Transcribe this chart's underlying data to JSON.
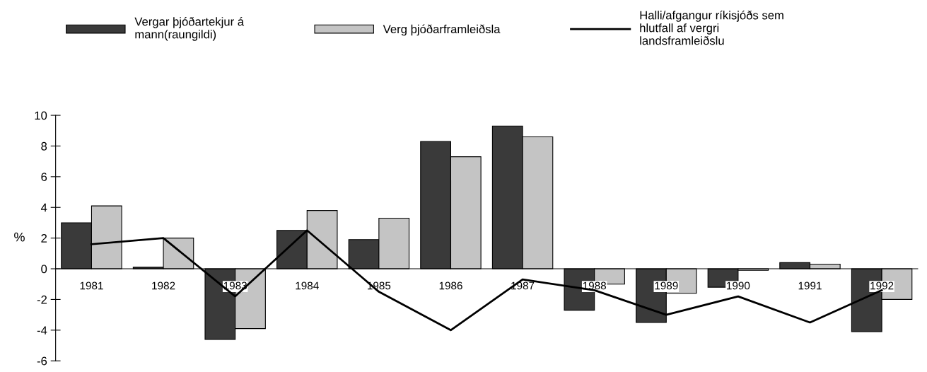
{
  "chart_data": {
    "type": "bar",
    "ylabel": "%",
    "categories": [
      "1981",
      "1982",
      "1983",
      "1984",
      "1985",
      "1986",
      "1987",
      "1988",
      "1989",
      "1990",
      "1991",
      "1992"
    ],
    "series": [
      {
        "name": "Vergar þjóðartekjur á\nmann(raungildi)",
        "color": "#3a3a3a",
        "values": [
          3.0,
          0.1,
          -4.6,
          2.5,
          1.9,
          8.3,
          9.3,
          -2.7,
          -3.5,
          -1.2,
          0.4,
          -4.1
        ]
      },
      {
        "name": "Verg þjóðarframleiðsla",
        "color": "#c4c4c4",
        "values": [
          4.1,
          2.0,
          -3.9,
          3.8,
          3.3,
          7.3,
          8.6,
          -1.0,
          -1.6,
          -0.1,
          0.3,
          -2.0
        ]
      },
      {
        "name": "Halli/afgangur ríkisjóðs sem\nhlutfall af vergri\nlandsframleiðslu",
        "type": "line",
        "color": "#000000",
        "values": [
          1.6,
          2.0,
          -1.8,
          2.5,
          -1.5,
          -4.0,
          -0.7,
          -1.4,
          -3.0,
          -1.8,
          -3.5,
          -1.4
        ]
      }
    ],
    "ylim": [
      -6,
      10
    ],
    "yticks": [
      -6,
      -4,
      -2,
      0,
      2,
      4,
      6,
      8,
      10
    ],
    "grid": false,
    "legend": "top",
    "marker": "none",
    "line_style": "solid"
  }
}
